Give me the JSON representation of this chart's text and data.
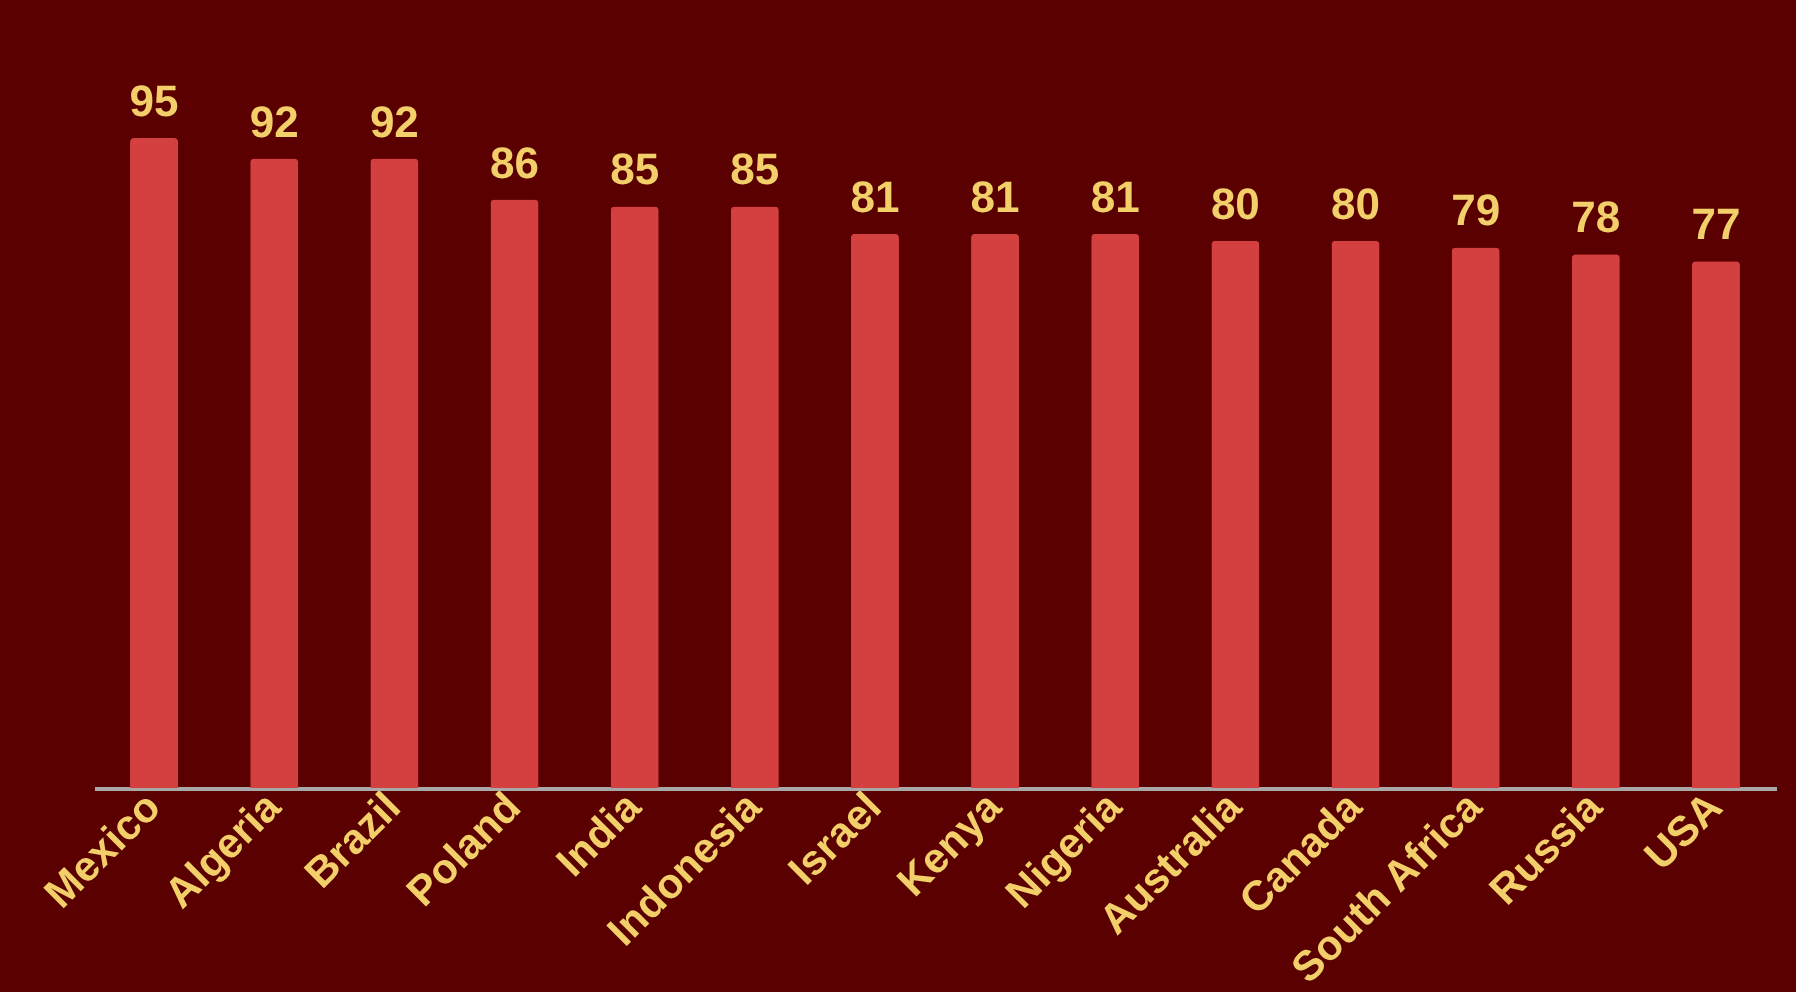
{
  "chart_data": {
    "type": "bar",
    "categories": [
      "Mexico",
      "Algeria",
      "Brazil",
      "Poland",
      "India",
      "Indonesia",
      "Israel",
      "Kenya",
      "Nigeria",
      "Australia",
      "Canada",
      "South Africa",
      "Russia",
      "USA"
    ],
    "values": [
      95,
      92,
      92,
      86,
      85,
      85,
      81,
      81,
      81,
      80,
      80,
      79,
      78,
      77
    ],
    "color": "#d43f3f",
    "data_labels": true
  }
}
